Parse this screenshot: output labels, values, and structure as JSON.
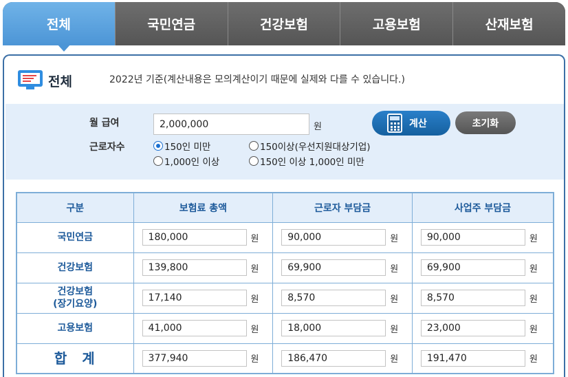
{
  "tabs": [
    {
      "label": "전체",
      "active": true
    },
    {
      "label": "국민연금",
      "active": false
    },
    {
      "label": "건강보험",
      "active": false
    },
    {
      "label": "고용보험",
      "active": false
    },
    {
      "label": "산재보험",
      "active": false
    }
  ],
  "header": {
    "icon": "monitor-icon",
    "title": "전체",
    "note": "2022년 기준(계산내용은 모의계산이기 때문에 실제와 다를 수 있습니다.)"
  },
  "form": {
    "salary_label": "월 급여",
    "salary_value": "2,000,000",
    "salary_unit": "원",
    "workers_label": "근로자수",
    "options": [
      {
        "label": "150인 미만",
        "selected": true
      },
      {
        "label": "150이상(우선지원대상기업)",
        "selected": false
      },
      {
        "label": "1,000인 이상",
        "selected": false
      },
      {
        "label": "150인 이상 1,000인 미만",
        "selected": false
      }
    ],
    "calc_button": "계산",
    "reset_button": "초기화"
  },
  "table": {
    "headers": [
      "구분",
      "보험료 총액",
      "근로자 부담금",
      "사업주 부담금"
    ],
    "unit": "원",
    "rows": [
      {
        "label": "국민연금",
        "label2": "",
        "values": [
          "180,000",
          "90,000",
          "90,000"
        ]
      },
      {
        "label": "건강보험",
        "label2": "",
        "values": [
          "139,800",
          "69,900",
          "69,900"
        ]
      },
      {
        "label": "건강보험",
        "label2": "(장기요양)",
        "values": [
          "17,140",
          "8,570",
          "8,570"
        ]
      },
      {
        "label": "고용보험",
        "label2": "",
        "values": [
          "41,000",
          "18,000",
          "23,000"
        ]
      },
      {
        "label": "합계",
        "label2": "",
        "values": [
          "377,940",
          "186,470",
          "191,470"
        ]
      }
    ]
  },
  "colors": {
    "accent_blue": "#4c95d6",
    "tab_gray": "#5f5f5f",
    "header_text": "#1d5a9a",
    "light_bg": "#e3eefa"
  }
}
